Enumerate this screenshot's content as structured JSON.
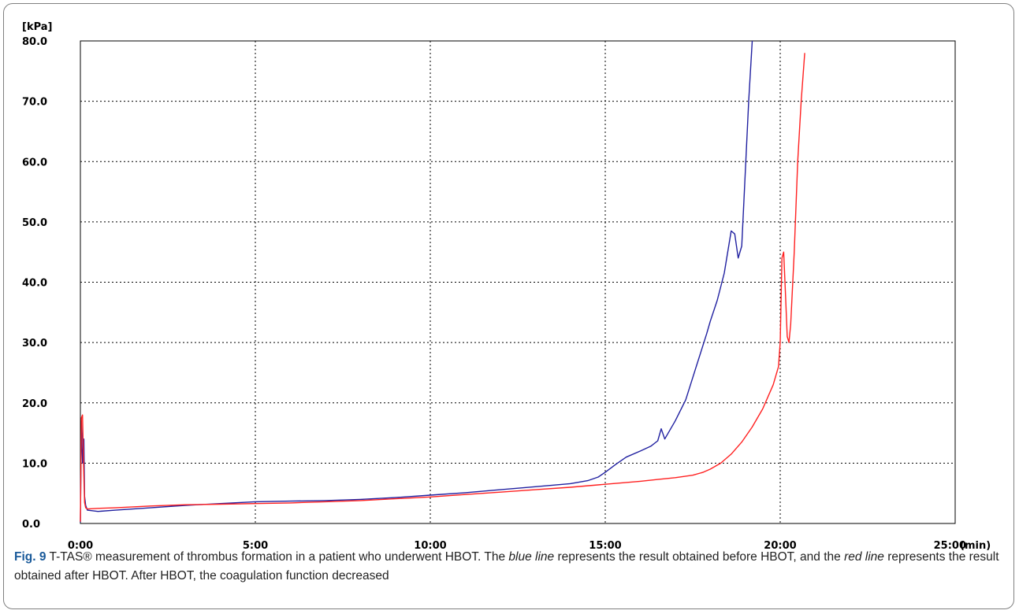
{
  "chart_data": {
    "type": "line",
    "y_unit_label": "[kPa]",
    "x_unit_label": "(min)",
    "ylim": [
      0,
      80
    ],
    "xlim_minutes": [
      0,
      25
    ],
    "y_ticks": [
      "0.0",
      "10.0",
      "20.0",
      "30.0",
      "40.0",
      "50.0",
      "60.0",
      "70.0",
      "80.0"
    ],
    "x_ticks": [
      "0:00",
      "5:00",
      "10:00",
      "15:00",
      "20:00",
      "25:00"
    ],
    "grid": "dotted",
    "series": [
      {
        "color": "#2020a0",
        "x": [
          0.0,
          0.03,
          0.06,
          0.1,
          0.12,
          0.15,
          0.2,
          0.5,
          1,
          2,
          3,
          4,
          5,
          6,
          7,
          8,
          9,
          10,
          11,
          12,
          13,
          14,
          14.5,
          14.8,
          15.0,
          15.3,
          15.6,
          16.0,
          16.3,
          16.5,
          16.6,
          16.7,
          17.0,
          17.3,
          17.6,
          17.9,
          18.0,
          18.2,
          18.4,
          18.6,
          18.7,
          18.8,
          18.9,
          19.0,
          19.1,
          19.2
        ],
        "y": [
          0.2,
          17.0,
          10.0,
          14.0,
          4.5,
          3.0,
          2.2,
          2.0,
          2.2,
          2.6,
          3.0,
          3.3,
          3.6,
          3.7,
          3.8,
          4.0,
          4.3,
          4.7,
          5.1,
          5.6,
          6.1,
          6.6,
          7.1,
          7.7,
          8.5,
          9.8,
          11.0,
          12.0,
          12.8,
          13.7,
          15.7,
          14.0,
          17.0,
          20.5,
          26.0,
          31.5,
          33.5,
          37.0,
          41.5,
          48.5,
          48.0,
          44.0,
          46.0,
          58.0,
          70.0,
          80.0
        ]
      },
      {
        "color": "#ff2020",
        "x": [
          0.0,
          0.03,
          0.06,
          0.09,
          0.12,
          0.15,
          0.2,
          0.5,
          1,
          2,
          3,
          4,
          5,
          6,
          7,
          8,
          9,
          10,
          11,
          12,
          13,
          14,
          15,
          16,
          16.5,
          17,
          17.5,
          17.8,
          18.0,
          18.3,
          18.6,
          18.9,
          19.2,
          19.5,
          19.8,
          19.95,
          20.0,
          20.05,
          20.1,
          20.15,
          20.2,
          20.25,
          20.3,
          20.4,
          20.5,
          20.6,
          20.7
        ],
        "y": [
          0.3,
          17.5,
          18.0,
          10.0,
          3.5,
          2.6,
          2.4,
          2.5,
          2.6,
          2.9,
          3.1,
          3.2,
          3.3,
          3.4,
          3.6,
          3.8,
          4.1,
          4.4,
          4.8,
          5.2,
          5.6,
          6.0,
          6.5,
          7.0,
          7.3,
          7.6,
          8.0,
          8.5,
          9.0,
          10.0,
          11.5,
          13.5,
          16.0,
          19.0,
          23.0,
          26.0,
          30.0,
          44.0,
          45.0,
          38.0,
          31.0,
          30.0,
          33.0,
          45.0,
          60.0,
          70.0,
          78.0
        ]
      }
    ]
  },
  "caption": {
    "fig_label": "Fig. 9",
    "part1": " T-TAS® measurement of thrombus formation in a patient who underwent HBOT. The ",
    "blue_term": "blue line",
    "part2": " represents the result obtained before HBOT, and the ",
    "red_term": "red line",
    "part3": " represents the result obtained after HBOT. After HBOT, the coagulation function decreased"
  }
}
